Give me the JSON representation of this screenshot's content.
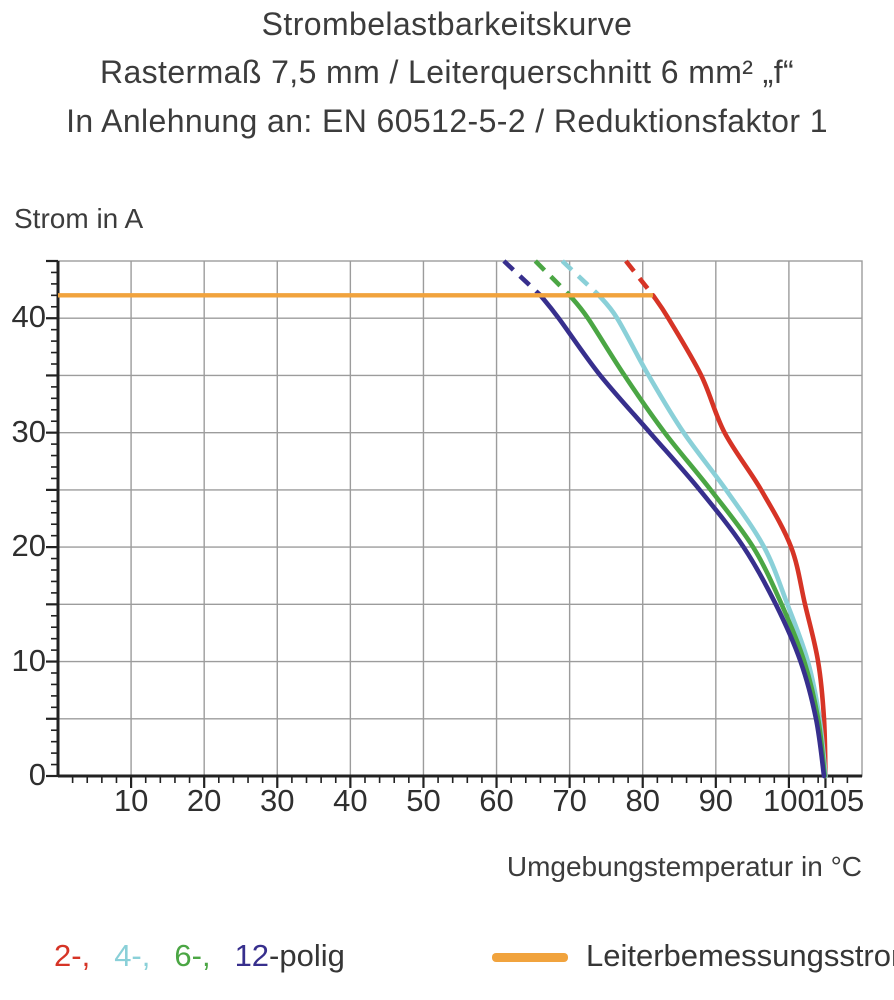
{
  "title": {
    "line1": "Strombelastbarkeitskurve",
    "line2": "Rastermaß 7,5 mm / Leiterquerschnitt 6 mm² „f“",
    "line3": "In Anlehnung an: EN 60512-5-2 / Reduktionsfaktor 1"
  },
  "chart_data": {
    "type": "line",
    "title": "Strombelastbarkeitskurve",
    "xlabel": "Umgebungstemperatur in °C",
    "ylabel": "Strom in A",
    "x_range": [
      0,
      110
    ],
    "y_range": [
      0,
      45
    ],
    "x_major_ticks": [
      10,
      20,
      30,
      40,
      50,
      60,
      70,
      80,
      90,
      100,
      105
    ],
    "y_major_ticks": [
      0,
      10,
      20,
      30,
      40
    ],
    "x_grid_step": 10,
    "y_grid_step": 5,
    "x_minor_step": 2,
    "y_minor_step": 1,
    "grid_on": true,
    "grid_color": "#9c9c9c",
    "axis_color": "#222222",
    "reference_line": {
      "name": "Leiterbemessungsstrom",
      "value_A": 42,
      "x_start": 0,
      "x_end": 81.4,
      "color": "#f1a33d"
    },
    "series": [
      {
        "name": "2-polig",
        "color": "#d63426",
        "dashed_points": [
          [
            77.7,
            45
          ],
          [
            81.4,
            42
          ]
        ],
        "points": [
          [
            81.4,
            42
          ],
          [
            83.5,
            40
          ],
          [
            88,
            35
          ],
          [
            91.2,
            30
          ],
          [
            96.2,
            25
          ],
          [
            100.3,
            20
          ],
          [
            102.2,
            15
          ],
          [
            104,
            10
          ],
          [
            104.8,
            5
          ],
          [
            105,
            0
          ]
        ]
      },
      {
        "name": "4-polig",
        "color": "#8ad0d8",
        "dashed_points": [
          [
            69,
            45
          ],
          [
            74,
            42
          ]
        ],
        "points": [
          [
            74,
            42
          ],
          [
            76.5,
            40
          ],
          [
            80.8,
            35
          ],
          [
            85.6,
            30
          ],
          [
            91.4,
            25
          ],
          [
            96.6,
            20
          ],
          [
            99.8,
            15
          ],
          [
            102.6,
            10
          ],
          [
            104.2,
            5
          ],
          [
            105,
            0
          ]
        ]
      },
      {
        "name": "6-polig",
        "color": "#4ba644",
        "dashed_points": [
          [
            65.3,
            45
          ],
          [
            70,
            42
          ]
        ],
        "points": [
          [
            70,
            42
          ],
          [
            72.5,
            40
          ],
          [
            77.5,
            35
          ],
          [
            83,
            30
          ],
          [
            89.3,
            25
          ],
          [
            95.1,
            20
          ],
          [
            99,
            15
          ],
          [
            102.1,
            10
          ],
          [
            104,
            5
          ],
          [
            104.9,
            0
          ]
        ]
      },
      {
        "name": "12-polig",
        "color": "#372f8d",
        "dashed_points": [
          [
            61,
            45
          ],
          [
            66,
            42
          ]
        ],
        "points": [
          [
            66,
            42
          ],
          [
            68.5,
            40
          ],
          [
            74.2,
            35
          ],
          [
            81,
            30
          ],
          [
            87.8,
            25
          ],
          [
            93.8,
            20
          ],
          [
            98.2,
            15
          ],
          [
            101.6,
            10
          ],
          [
            103.7,
            5
          ],
          [
            104.8,
            0
          ]
        ]
      }
    ]
  },
  "legend": {
    "items": [
      {
        "label": "2-,",
        "color": "#d63426"
      },
      {
        "label": "4-,",
        "color": "#8ad0d8"
      },
      {
        "label": "6-,",
        "color": "#4ba644"
      },
      {
        "label": "12",
        "color": "#372f8d"
      }
    ],
    "suffix": "-polig",
    "reference": {
      "label": "Leiterbemessungsstrom",
      "color": "#f1a33d"
    }
  }
}
